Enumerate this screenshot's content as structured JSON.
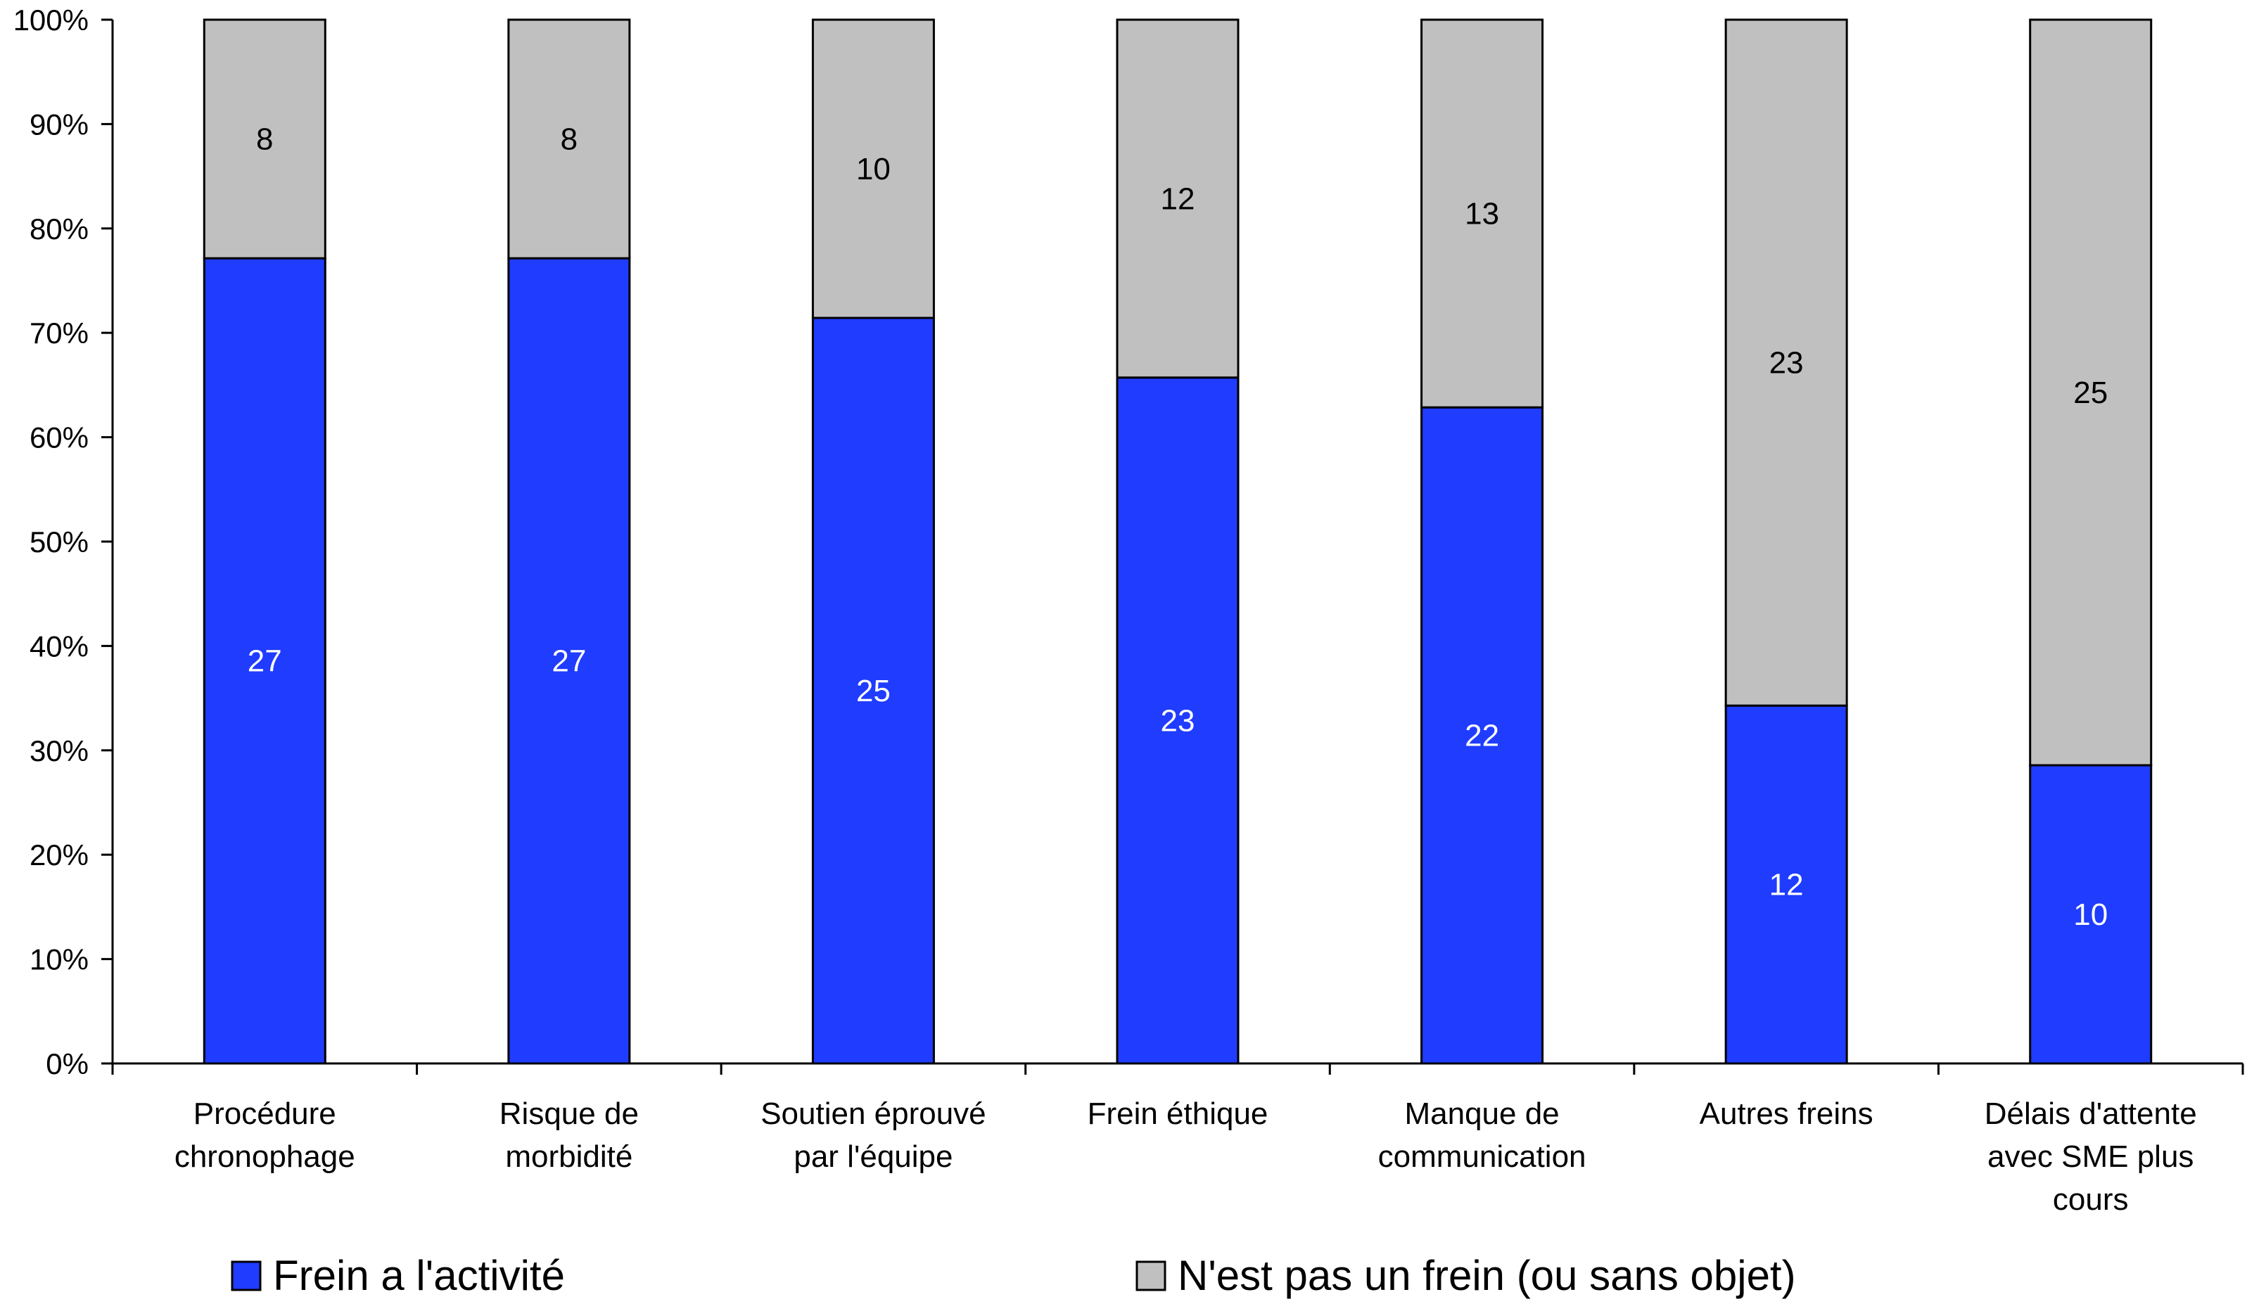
{
  "chart_data": {
    "type": "bar",
    "stacked": true,
    "normalized": true,
    "categories": [
      [
        "Procédure",
        "chronophage"
      ],
      [
        "Risque de",
        "morbidité"
      ],
      [
        "Soutien éprouvé",
        "par l'équipe"
      ],
      [
        "Frein éthique"
      ],
      [
        "Manque de",
        "communication"
      ],
      [
        "Autres freins"
      ],
      [
        "Délais d'attente",
        "avec SME plus",
        "cours"
      ]
    ],
    "series": [
      {
        "name": "Frein a l'activité",
        "color": "#1f3cff",
        "label_color": "#ffffff",
        "values": [
          27,
          27,
          25,
          23,
          22,
          12,
          10
        ]
      },
      {
        "name": "N'est pas un frein (ou sans objet)",
        "color": "#c0c0c0",
        "label_color": "#000000",
        "values": [
          8,
          8,
          10,
          12,
          13,
          23,
          25
        ]
      }
    ],
    "yticks": [
      "0%",
      "10%",
      "20%",
      "30%",
      "40%",
      "50%",
      "60%",
      "70%",
      "80%",
      "90%",
      "100%"
    ],
    "ylim": [
      0,
      100
    ],
    "grid": false,
    "legend": "bottom"
  }
}
